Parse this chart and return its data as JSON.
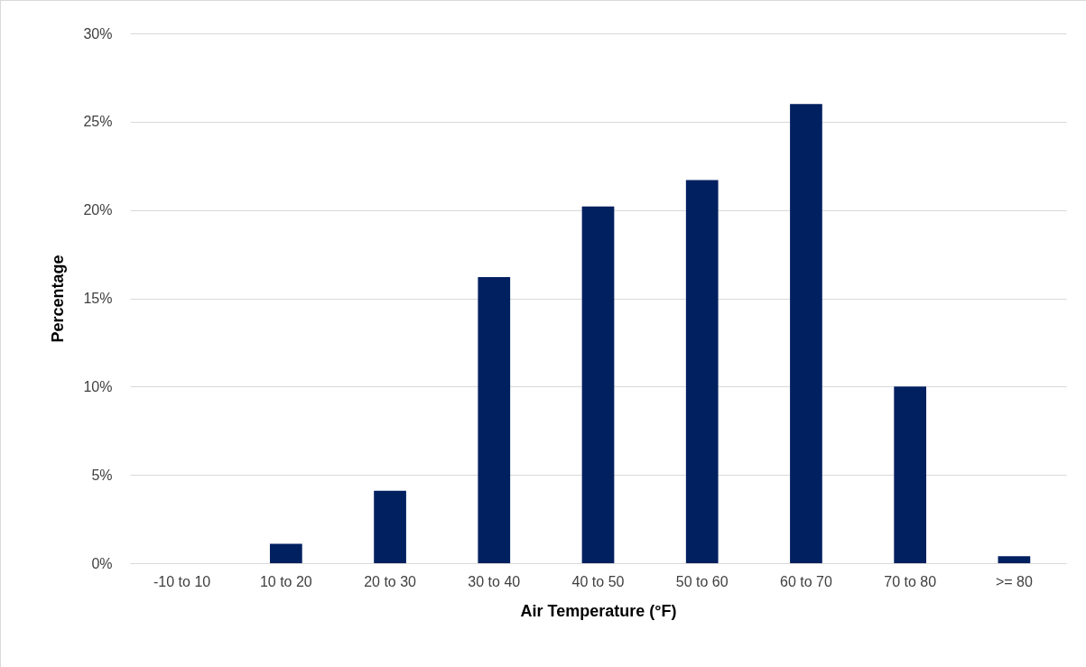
{
  "chart_data": {
    "type": "bar",
    "xlabel": "Air Temperature (°F)",
    "ylabel": "Percentage",
    "categories": [
      "-10 to 10",
      "10 to 20",
      "20 to 30",
      "30 to 40",
      "40 to 50",
      "50 to 60",
      "60 to 70",
      "70 to 80",
      ">= 80"
    ],
    "values": [
      0,
      1.1,
      4.1,
      16.2,
      20.2,
      21.7,
      26.0,
      10.0,
      0.4
    ],
    "color": "#002060",
    "ylim": [
      0,
      30
    ],
    "yticks": [
      {
        "value": 0,
        "label": "0%"
      },
      {
        "value": 5,
        "label": "5%"
      },
      {
        "value": 10,
        "label": "10%"
      },
      {
        "value": 15,
        "label": "15%"
      },
      {
        "value": 20,
        "label": "20%"
      },
      {
        "value": 25,
        "label": "25%"
      },
      {
        "value": 30,
        "label": "30%"
      }
    ],
    "grid": "y"
  }
}
